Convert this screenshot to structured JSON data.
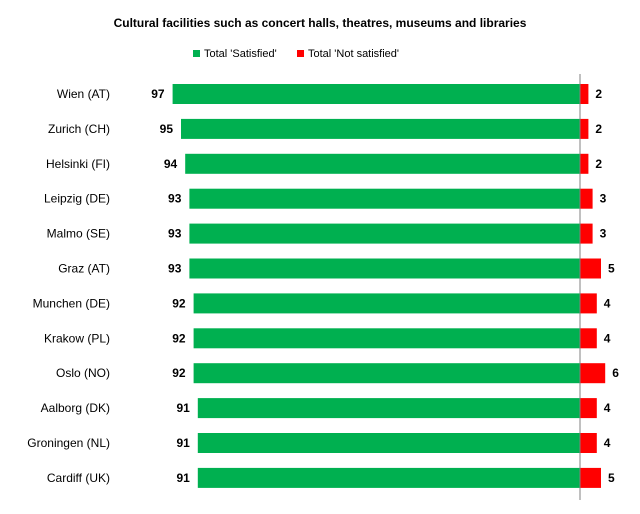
{
  "chart_data": {
    "type": "bar",
    "orientation": "horizontal",
    "stacked": "diverging",
    "title": "Cultural facilities such as concert halls, theatres,  museums and libraries",
    "categories": [
      "Wien (AT)",
      "Zurich (CH)",
      "Helsinki (FI)",
      "Leipzig (DE)",
      "Malmo (SE)",
      "Graz (AT)",
      "Munchen (DE)",
      "Krakow (PL)",
      "Oslo (NO)",
      "Aalborg (DK)",
      "Groningen (NL)",
      "Cardiff (UK)"
    ],
    "series": [
      {
        "name": "Total 'Satisfied'",
        "color": "#00b050",
        "values": [
          97,
          95,
          94,
          93,
          93,
          93,
          92,
          92,
          92,
          91,
          91,
          91
        ]
      },
      {
        "name": "Total 'Not satisfied'",
        "color": "#ff0000",
        "values": [
          2,
          2,
          2,
          3,
          3,
          5,
          4,
          4,
          6,
          4,
          4,
          5
        ]
      }
    ],
    "legend_position": "top",
    "grid": false
  }
}
